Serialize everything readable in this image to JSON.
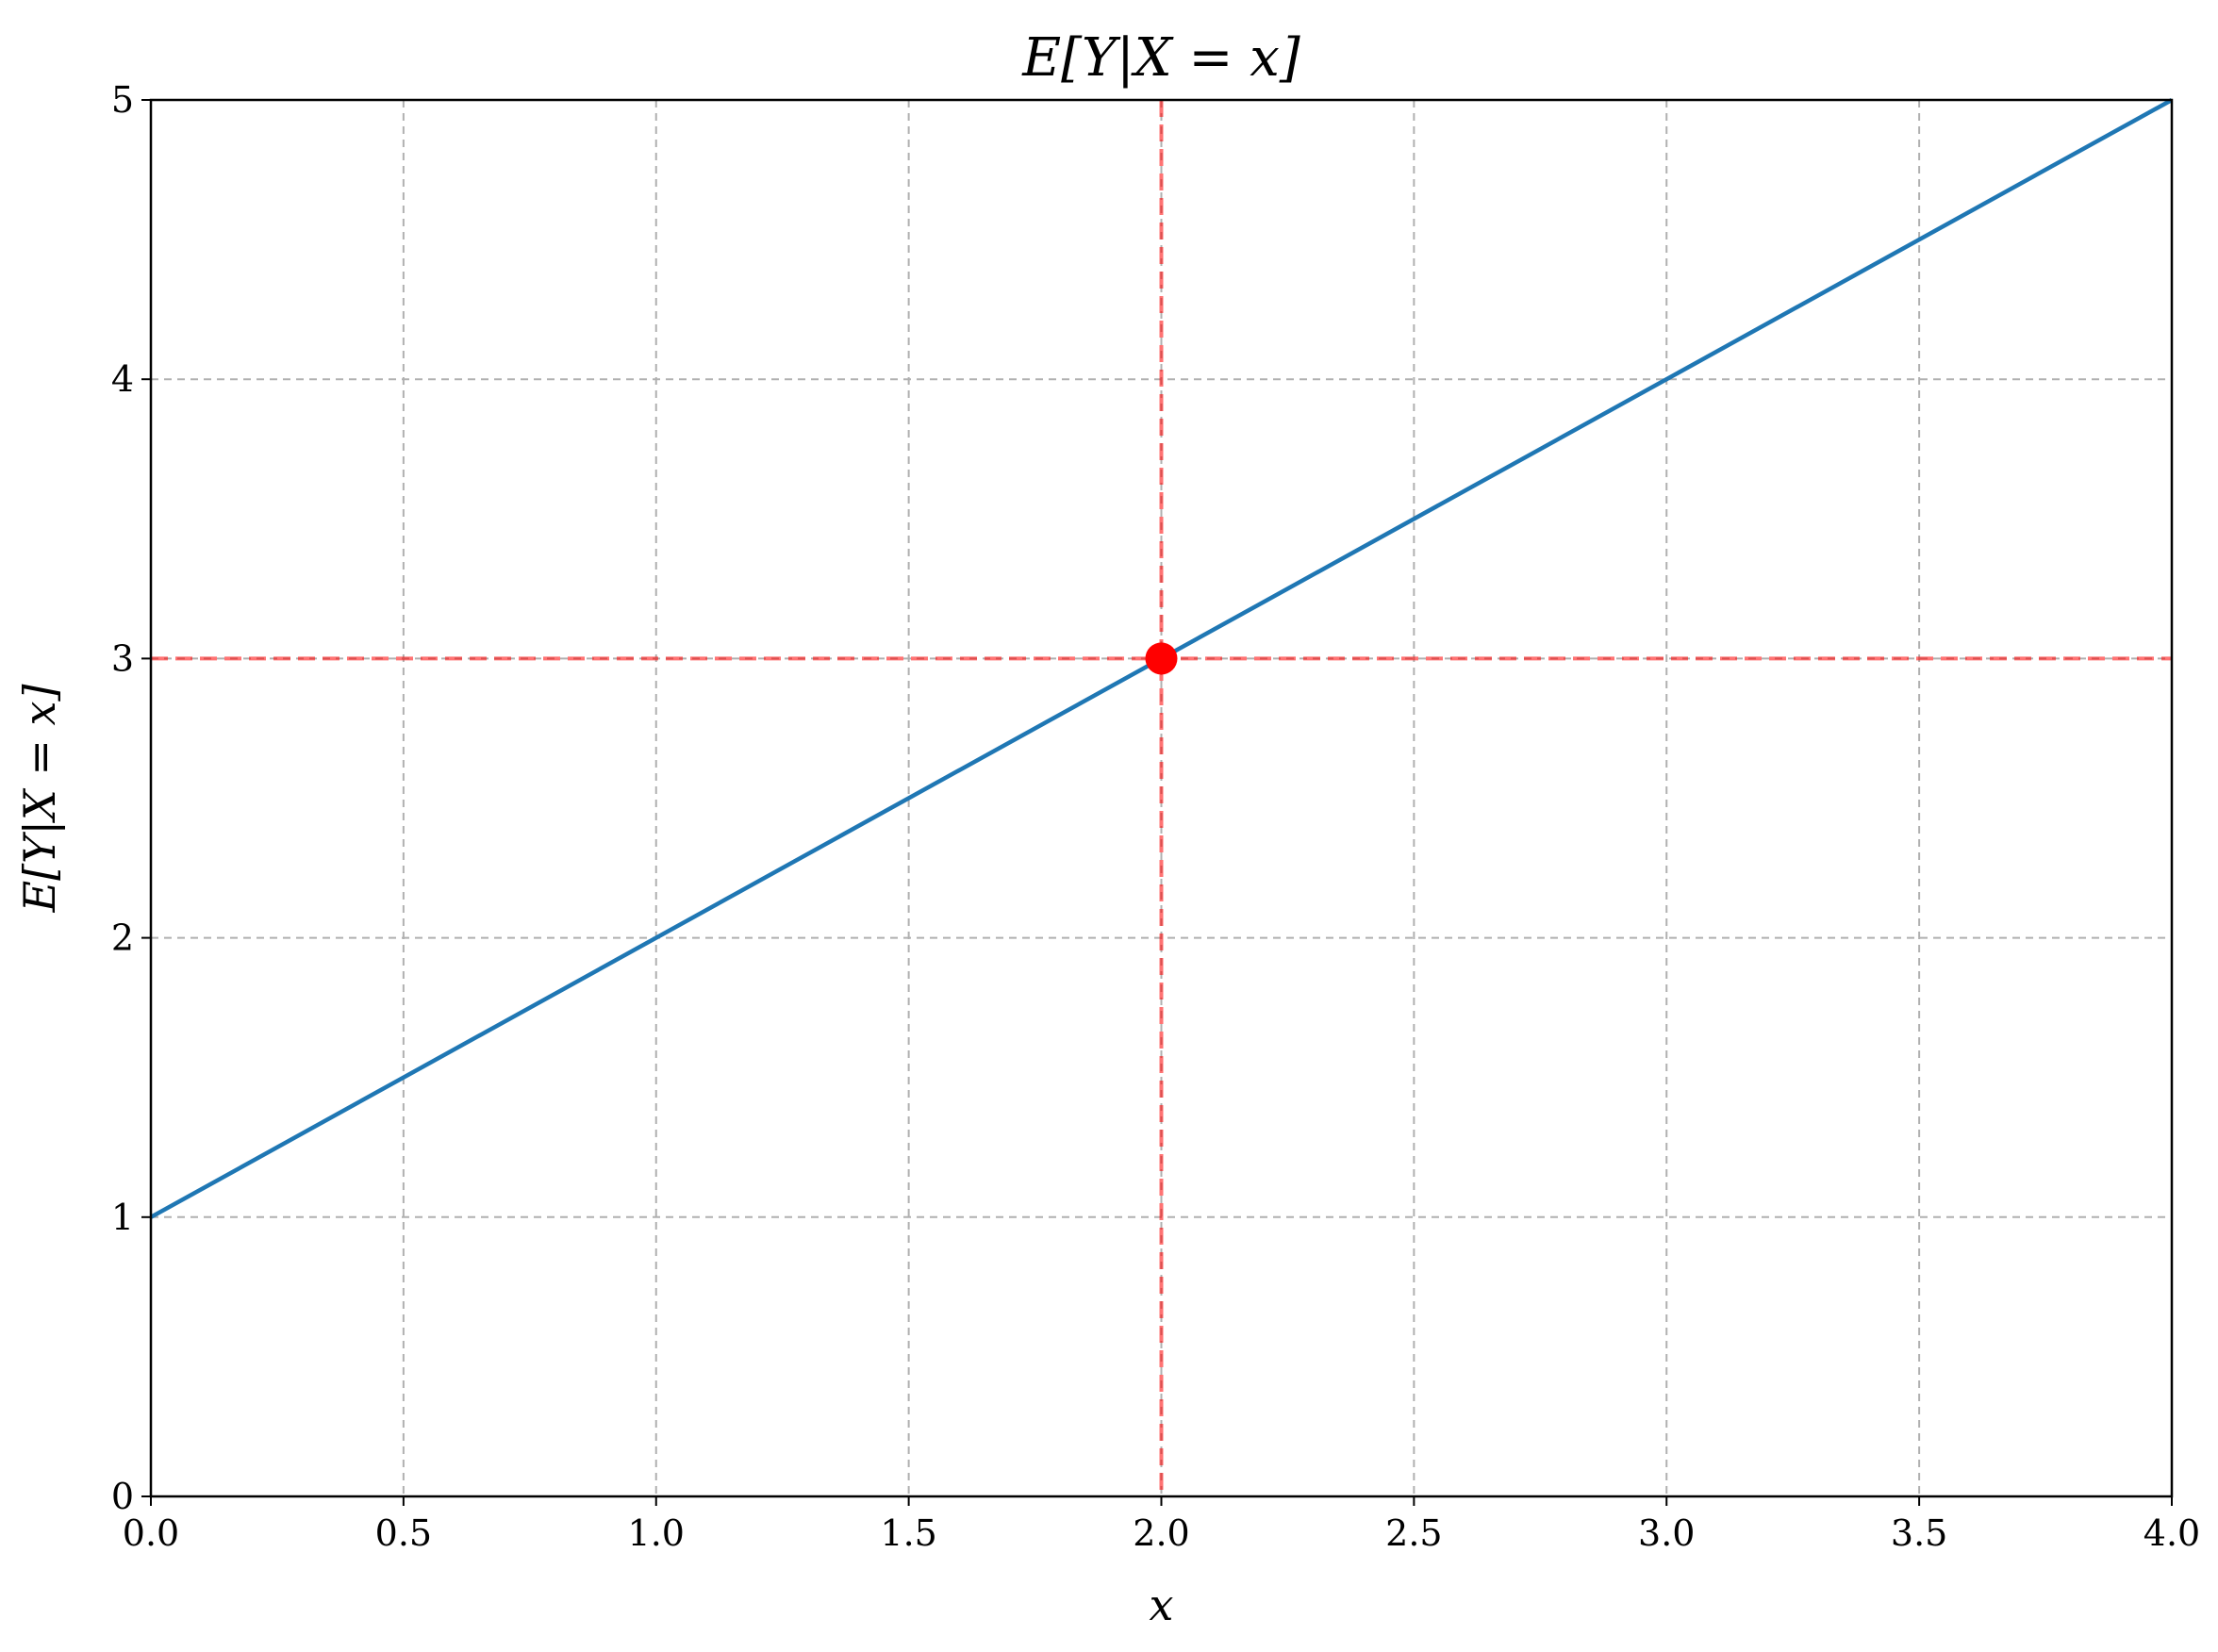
{
  "chart_data": {
    "type": "line",
    "title": "E[Y|X = x]",
    "xlabel": "x",
    "ylabel": "E[Y|X = x]",
    "xlim": [
      0.0,
      4.0
    ],
    "ylim": [
      0,
      5
    ],
    "x_ticks": [
      "0.0",
      "0.5",
      "1.0",
      "1.5",
      "2.0",
      "2.5",
      "3.0",
      "3.5",
      "4.0"
    ],
    "y_ticks": [
      "0",
      "1",
      "2",
      "3",
      "4",
      "5"
    ],
    "grid": true,
    "series": [
      {
        "x": [
          0.0,
          4.0
        ],
        "y": [
          1.0,
          5.0
        ],
        "color": "#1f77b4"
      }
    ],
    "highlight_point": {
      "x": 2.0,
      "y": 3.0,
      "color": "#ff0000"
    },
    "reference_lines": {
      "x": 2.0,
      "y": 3.0,
      "color": "#ff0000"
    }
  }
}
